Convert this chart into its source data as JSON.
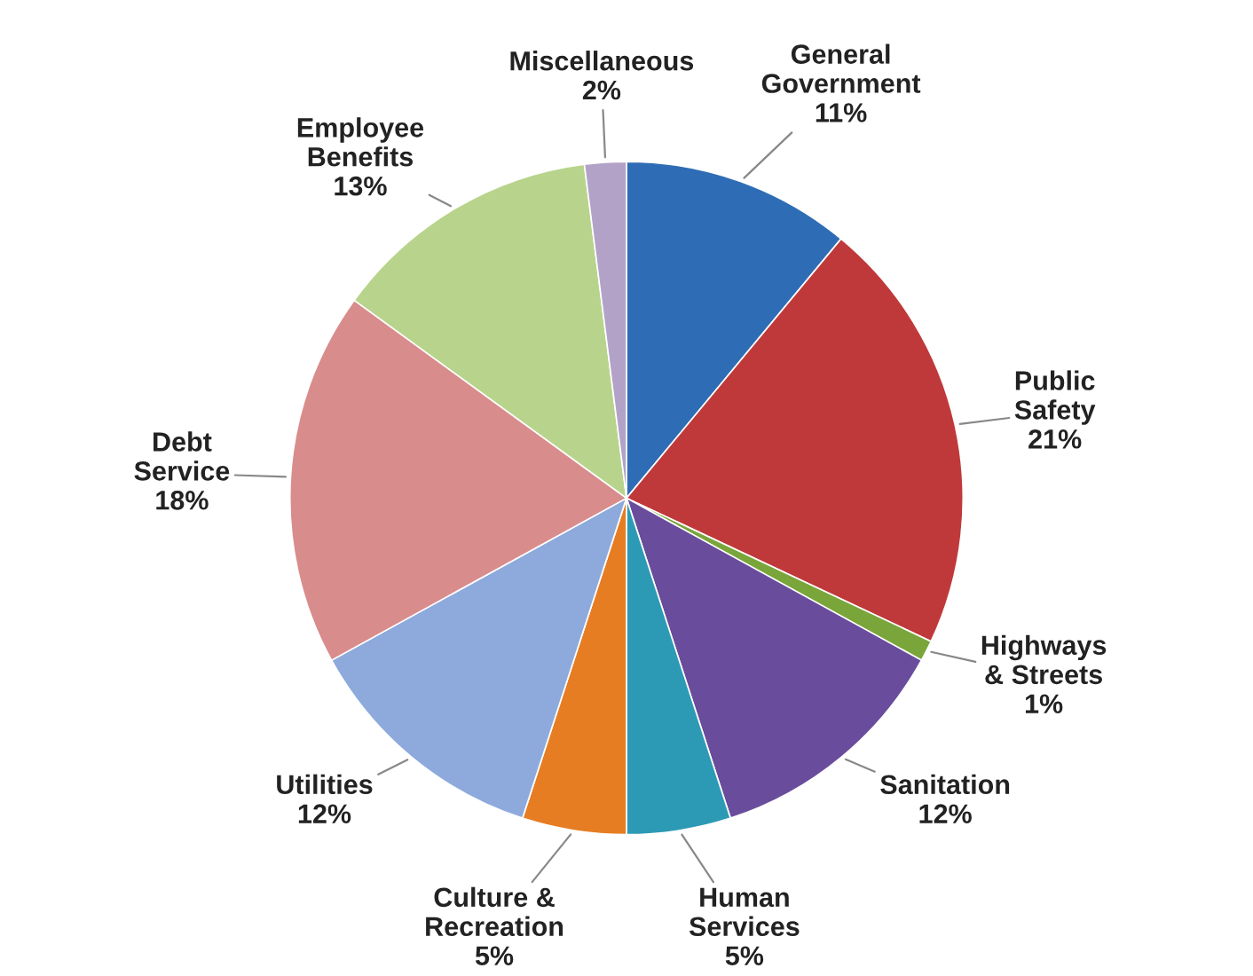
{
  "chart_data": {
    "type": "pie",
    "categories": [
      "General Government",
      "Public Safety",
      "Highways & Streets",
      "Sanitation",
      "Human Services",
      "Culture & Recreation",
      "Utilities",
      "Debt Service",
      "Employee Benefits",
      "Miscellaneous"
    ],
    "values": [
      11,
      21,
      1,
      12,
      5,
      5,
      12,
      18,
      13,
      2
    ],
    "colors": [
      "#2e6db5",
      "#c0393a",
      "#7aa53a",
      "#6a4c9c",
      "#2d9ab5",
      "#e77d22",
      "#8eaadc",
      "#d98c8c",
      "#b8d48c",
      "#b3a2c8"
    ],
    "value_labels": [
      "11%",
      "21%",
      "1%",
      "12%",
      "5%",
      "5%",
      "12%",
      "18%",
      "13%",
      "2%"
    ],
    "legend": false
  }
}
